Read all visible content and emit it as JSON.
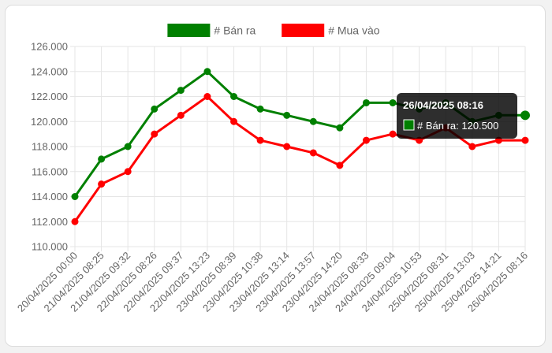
{
  "chart_data": {
    "type": "line",
    "x": [
      "20/04/2025 00:00",
      "21/04/2025 08:25",
      "21/04/2025 09:32",
      "22/04/2025 08:26",
      "22/04/2025 09:37",
      "22/04/2025 13:23",
      "23/04/2025 08:39",
      "23/04/2025 10:38",
      "23/04/2025 13:14",
      "23/04/2025 13:57",
      "23/04/2025 14:20",
      "24/04/2025 08:33",
      "24/04/2025 09:04",
      "24/04/2025 10:53",
      "25/04/2025 08:31",
      "25/04/2025 13:03",
      "25/04/2025 14:21",
      "26/04/2025 08:16"
    ],
    "series": [
      {
        "name": "# Bán ra",
        "color": "#008000",
        "values": [
          114000,
          117000,
          118000,
          121000,
          122500,
          124000,
          122000,
          121000,
          120500,
          120000,
          119500,
          121500,
          121500,
          121000,
          121500,
          120000,
          120500,
          120500
        ]
      },
      {
        "name": "# Mua vào",
        "color": "#ff0000",
        "values": [
          112000,
          115000,
          116000,
          119000,
          120500,
          122000,
          120000,
          118500,
          118000,
          117500,
          116500,
          118500,
          119000,
          118500,
          119500,
          118000,
          118500,
          118500
        ]
      }
    ],
    "y_ticks": [
      "126.000",
      "124.000",
      "122.000",
      "120.000",
      "118.000",
      "116.000",
      "114.000",
      "112.000",
      "110.000"
    ],
    "ylim": [
      110000,
      126000
    ],
    "grid": true,
    "legend_position": "top-center",
    "tooltip": {
      "title": "26/04/2025 08:16",
      "body": "# Bán ra: 120.500",
      "series_index": 0,
      "point_index": 17
    }
  }
}
